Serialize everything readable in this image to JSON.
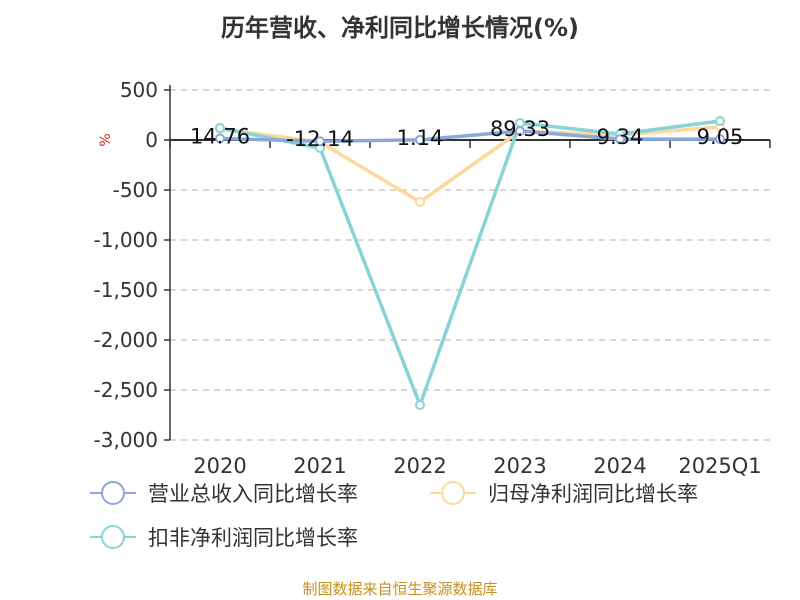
{
  "chart_data": {
    "type": "line",
    "title": "历年营收、净利同比增长情况(%)",
    "ylabel": "%",
    "categories": [
      "2020",
      "2021",
      "2022",
      "2023",
      "2024",
      "2025Q1"
    ],
    "ylim": [
      -3000,
      500
    ],
    "yticks": [
      500,
      0,
      -500,
      -1000,
      -1500,
      -2000,
      -2500,
      -3000
    ],
    "ytick_labels": [
      "500",
      "0",
      "-500",
      "-1,000",
      "-1,500",
      "-2,000",
      "-2,500",
      "-3,000"
    ],
    "grid": true,
    "legend_position": "bottom",
    "series": [
      {
        "name": "营业总收入同比增长率",
        "color": "#8aa8dc",
        "values": [
          14.76,
          -12.14,
          1.14,
          89.33,
          9.34,
          9.05
        ],
        "labels": [
          "14.76",
          "-12.14",
          "1.14",
          "89.33",
          "9.34",
          "9.05"
        ]
      },
      {
        "name": "归母净利润同比增长率",
        "color": "#fdd89a",
        "values": [
          110,
          -20,
          -620,
          90,
          50,
          130
        ]
      },
      {
        "name": "扣非净利润同比增长率",
        "color": "#86d4d8",
        "values": [
          120,
          -80,
          -2650,
          170,
          60,
          190
        ]
      }
    ]
  },
  "footer": "制图数据来自恒生聚源数据库"
}
